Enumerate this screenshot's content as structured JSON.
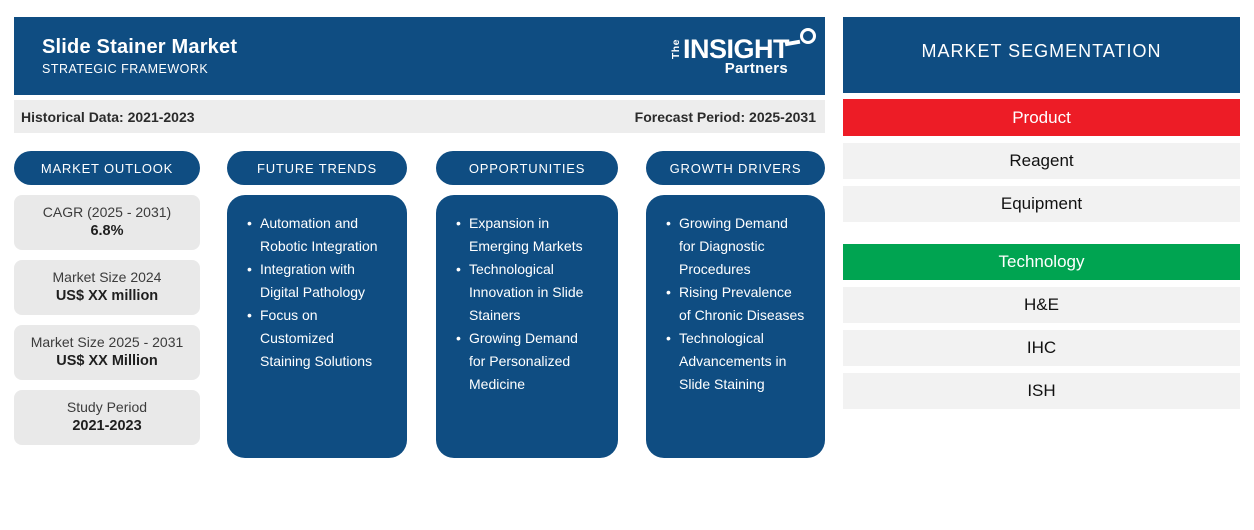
{
  "header": {
    "title": "Slide Stainer Market",
    "subtitle": "STRATEGIC FRAMEWORK",
    "logo": {
      "prefix": "The",
      "name": "INSIGHT",
      "suffix": "Partners"
    }
  },
  "period_bar": {
    "historical": "Historical Data: 2021-2023",
    "forecast": "Forecast Period: 2025-2031"
  },
  "market_outlook": {
    "label": "MARKET OUTLOOK",
    "cards": [
      {
        "label": "CAGR (2025 - 2031)",
        "value": "6.8%"
      },
      {
        "label": "Market Size 2024",
        "value": "US$ XX million"
      },
      {
        "label": "Market Size 2025 - 2031",
        "value": "US$ XX Million"
      },
      {
        "label": "Study Period",
        "value": "2021-2023"
      }
    ]
  },
  "future_trends": {
    "label": "FUTURE TRENDS",
    "bullets": [
      "Automation and Robotic Integration",
      "Integration with Digital Pathology",
      "Focus on Customized Staining Solutions"
    ]
  },
  "opportunities": {
    "label": "OPPORTUNITIES",
    "bullets": [
      "Expansion in Emerging Markets",
      "Technological Innovation in Slide Stainers",
      "Growing Demand for Personalized Medicine"
    ]
  },
  "growth_drivers": {
    "label": "GROWTH DRIVERS",
    "bullets": [
      "Growing Demand for Diagnostic Procedures",
      "Rising Prevalence of Chronic Diseases",
      "Technological Advancements in Slide Staining"
    ]
  },
  "segmentation": {
    "title": "MARKET SEGMENTATION",
    "groups": [
      {
        "label": "Product",
        "color": "#ed1c26",
        "items": [
          "Reagent",
          "Equipment"
        ]
      },
      {
        "label": "Technology",
        "color": "#00a451",
        "items": [
          "H&E",
          "IHC",
          "ISH"
        ]
      }
    ]
  },
  "colors": {
    "brand_blue": "#0f4d82",
    "segment_red": "#ed1c26",
    "segment_green": "#00a451",
    "bar_gray": "#ededed",
    "card_gray": "#e9e9e9",
    "row_gray": "#f2f2f2"
  }
}
